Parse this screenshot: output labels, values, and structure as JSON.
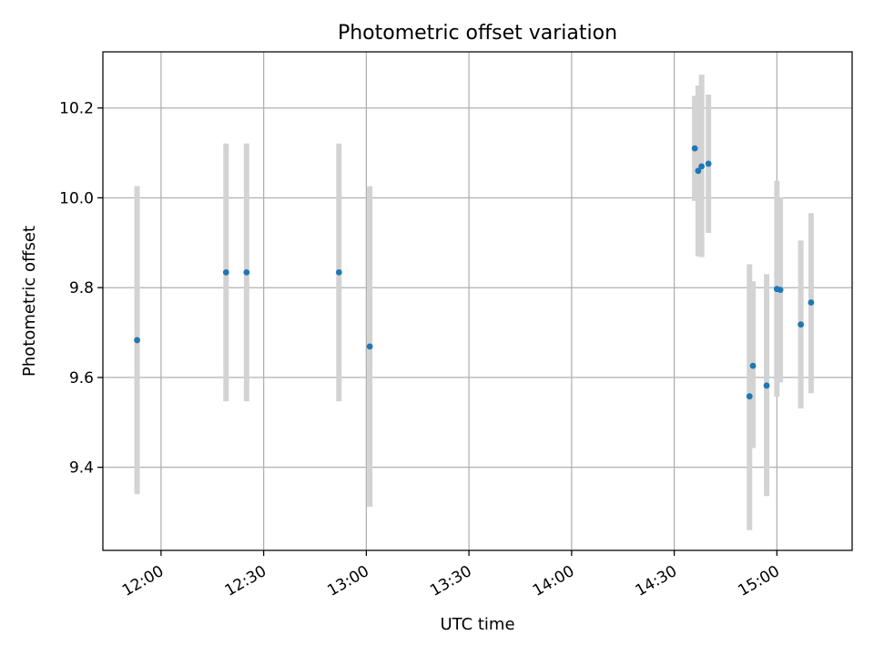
{
  "chart_data": {
    "type": "scatter",
    "title": "Photometric offset variation",
    "xlabel": "UTC time",
    "ylabel": "Photometric offset",
    "x_unit": "UTC time of day (HH:MM)",
    "xlim": [
      "11:43",
      "15:22"
    ],
    "ylim": [
      9.215,
      10.325
    ],
    "x_ticks": [
      "12:00",
      "12:30",
      "13:00",
      "13:30",
      "14:00",
      "14:30",
      "15:00"
    ],
    "y_ticks": [
      9.4,
      9.6,
      9.8,
      10.0,
      10.2
    ],
    "y_tick_labels": [
      "9.4",
      "9.6",
      "9.8",
      "10.0",
      "10.2"
    ],
    "grid": true,
    "point_color": "#1f77b4",
    "errorbar_color": "#d3d3d3",
    "points": [
      {
        "x": "11:53",
        "y": 9.683,
        "ylo": 9.34,
        "yhi": 10.026
      },
      {
        "x": "12:19",
        "y": 9.834,
        "ylo": 9.547,
        "yhi": 10.121
      },
      {
        "x": "12:25",
        "y": 9.834,
        "ylo": 9.547,
        "yhi": 10.121
      },
      {
        "x": "12:52",
        "y": 9.834,
        "ylo": 9.547,
        "yhi": 10.121
      },
      {
        "x": "13:01",
        "y": 9.669,
        "ylo": 9.312,
        "yhi": 10.026
      },
      {
        "x": "14:36",
        "y": 10.11,
        "ylo": 9.993,
        "yhi": 10.227
      },
      {
        "x": "14:37",
        "y": 10.06,
        "ylo": 9.87,
        "yhi": 10.25
      },
      {
        "x": "14:38",
        "y": 10.07,
        "ylo": 9.868,
        "yhi": 10.274
      },
      {
        "x": "14:40",
        "y": 10.076,
        "ylo": 9.922,
        "yhi": 10.23
      },
      {
        "x": "14:52",
        "y": 9.558,
        "ylo": 9.26,
        "yhi": 9.852
      },
      {
        "x": "14:53",
        "y": 9.626,
        "ylo": 9.443,
        "yhi": 9.814
      },
      {
        "x": "14:57",
        "y": 9.582,
        "ylo": 9.336,
        "yhi": 9.83
      },
      {
        "x": "15:00",
        "y": 9.797,
        "ylo": 9.557,
        "yhi": 10.038
      },
      {
        "x": "15:01",
        "y": 9.795,
        "ylo": 9.589,
        "yhi": 10.001
      },
      {
        "x": "15:07",
        "y": 9.718,
        "ylo": 9.531,
        "yhi": 9.905
      },
      {
        "x": "15:10",
        "y": 9.767,
        "ylo": 9.565,
        "yhi": 9.966
      }
    ]
  }
}
